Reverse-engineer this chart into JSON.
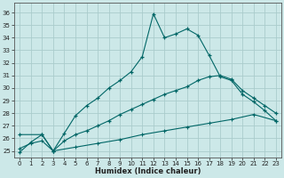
{
  "xlabel": "Humidex (Indice chaleur)",
  "bg_color": "#cce8e8",
  "grid_color": "#aacccc",
  "line_color": "#006666",
  "xlim": [
    -0.5,
    23.5
  ],
  "ylim": [
    24.5,
    36.8
  ],
  "xticks": [
    0,
    1,
    2,
    3,
    4,
    5,
    6,
    7,
    8,
    9,
    10,
    11,
    12,
    13,
    14,
    15,
    16,
    17,
    18,
    19,
    20,
    21,
    22,
    23
  ],
  "yticks": [
    25,
    26,
    27,
    28,
    29,
    30,
    31,
    32,
    33,
    34,
    35,
    36
  ],
  "line1_x": [
    0,
    1,
    2,
    3,
    4,
    5,
    6,
    7,
    8,
    9,
    10,
    11,
    12,
    13,
    14,
    15,
    16,
    17,
    18,
    19,
    20,
    21,
    22,
    23
  ],
  "line1_y": [
    24.9,
    25.7,
    26.3,
    25.0,
    26.4,
    27.8,
    28.6,
    29.2,
    30.0,
    30.6,
    31.3,
    32.5,
    35.9,
    34.0,
    34.3,
    34.7,
    34.2,
    32.6,
    30.9,
    30.6,
    29.5,
    28.9,
    28.2,
    27.4
  ],
  "line2_x": [
    0,
    2,
    3,
    4,
    5,
    6,
    7,
    8,
    9,
    10,
    11,
    12,
    13,
    14,
    15,
    16,
    17,
    18,
    19,
    20,
    21,
    22,
    23
  ],
  "line2_y": [
    26.3,
    26.3,
    25.0,
    25.8,
    26.3,
    26.6,
    27.0,
    27.4,
    27.9,
    28.3,
    28.7,
    29.1,
    29.5,
    29.8,
    30.1,
    30.6,
    30.9,
    31.0,
    30.7,
    29.8,
    29.2,
    28.6,
    28.0
  ],
  "line3_x": [
    0,
    1,
    2,
    3,
    5,
    7,
    9,
    11,
    13,
    15,
    17,
    19,
    21,
    23
  ],
  "line3_y": [
    25.2,
    25.6,
    25.8,
    25.0,
    25.3,
    25.6,
    25.9,
    26.3,
    26.6,
    26.9,
    27.2,
    27.5,
    27.9,
    27.4
  ]
}
